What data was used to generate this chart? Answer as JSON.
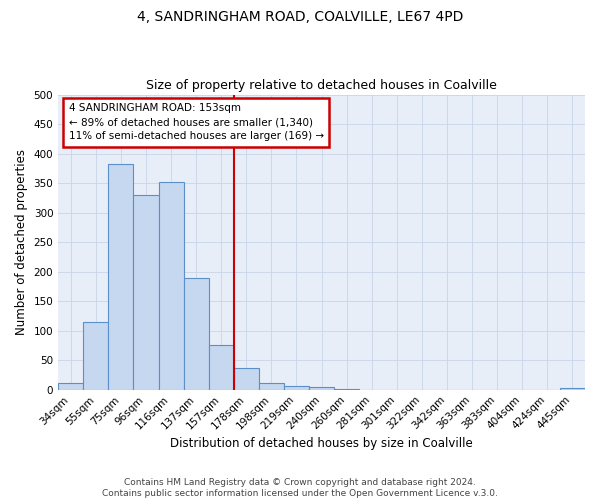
{
  "title": "4, SANDRINGHAM ROAD, COALVILLE, LE67 4PD",
  "subtitle": "Size of property relative to detached houses in Coalville",
  "xlabel": "Distribution of detached houses by size in Coalville",
  "ylabel": "Number of detached properties",
  "bar_labels": [
    "34sqm",
    "55sqm",
    "75sqm",
    "96sqm",
    "116sqm",
    "137sqm",
    "157sqm",
    "178sqm",
    "198sqm",
    "219sqm",
    "240sqm",
    "260sqm",
    "281sqm",
    "301sqm",
    "322sqm",
    "342sqm",
    "363sqm",
    "383sqm",
    "404sqm",
    "424sqm",
    "445sqm"
  ],
  "bar_values": [
    11,
    115,
    383,
    330,
    352,
    189,
    76,
    37,
    11,
    6,
    4,
    1,
    0,
    0,
    0,
    0,
    0,
    0,
    0,
    0,
    3
  ],
  "bar_color": "#c5d8f0",
  "bar_edgecolor": "#5b8fc9",
  "bg_color": "#e8eef8",
  "ylim": [
    0,
    500
  ],
  "yticks": [
    0,
    50,
    100,
    150,
    200,
    250,
    300,
    350,
    400,
    450,
    500
  ],
  "vline_index": 6,
  "annotation_line1": "4 SANDRINGHAM ROAD: 153sqm",
  "annotation_line2": "← 89% of detached houses are smaller (1,340)",
  "annotation_line3": "11% of semi-detached houses are larger (169) →",
  "annotation_box_color": "#ffffff",
  "annotation_box_edgecolor": "#cc0000",
  "vline_color": "#cc0000",
  "footer_line1": "Contains HM Land Registry data © Crown copyright and database right 2024.",
  "footer_line2": "Contains public sector information licensed under the Open Government Licence v.3.0.",
  "title_fontsize": 10,
  "subtitle_fontsize": 9,
  "axis_label_fontsize": 8.5,
  "tick_fontsize": 7.5,
  "annotation_fontsize": 7.5,
  "footer_fontsize": 6.5
}
